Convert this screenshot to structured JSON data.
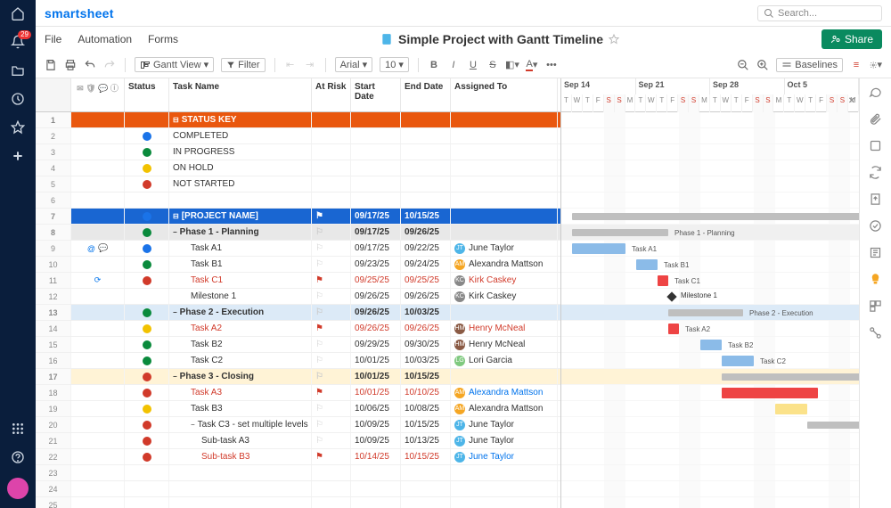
{
  "brand": "smartsheet",
  "search_placeholder": "Search...",
  "notification_count": "29",
  "menus": {
    "file": "File",
    "automation": "Automation",
    "forms": "Forms"
  },
  "title": "Simple Project with Gantt Timeline",
  "share_label": "Share",
  "toolbar": {
    "view": "Gantt View",
    "filter": "Filter",
    "font": "Arial",
    "size": "10",
    "baselines": "Baselines"
  },
  "columns": {
    "status": "Status",
    "task": "Task Name",
    "risk": "At Risk",
    "start": "Start Date",
    "end": "End Date",
    "assigned": "Assigned To"
  },
  "timeline": {
    "day_width": 12,
    "start_offset_days": 0,
    "weeks": [
      {
        "label": "Sep 14",
        "days": 7
      },
      {
        "label": "Sep 21",
        "days": 7
      },
      {
        "label": "Sep 28",
        "days": 7
      },
      {
        "label": "Oct 5",
        "days": 7
      }
    ],
    "day_labels": [
      "T",
      "W",
      "T",
      "F",
      "S",
      "S",
      "M",
      "T",
      "W",
      "T",
      "F",
      "S",
      "S",
      "M",
      "T",
      "W",
      "T",
      "F",
      "S",
      "S",
      "M",
      "T",
      "W",
      "T",
      "F",
      "S",
      "S",
      "M"
    ],
    "weekend_idx": [
      4,
      5,
      11,
      12,
      18,
      19,
      25,
      26
    ],
    "weekend_cols": [
      4,
      11,
      18,
      25
    ]
  },
  "status_colors": {
    "completed": "#1a73e8",
    "in_progress": "#0a8a3c",
    "on_hold": "#f2c200",
    "not_started": "#d13a2a"
  },
  "assignee_colors": {
    "JT": "#4db5e8",
    "AM": "#f5a623",
    "KC": "#888888",
    "HM": "#8a5a44",
    "LG": "#7fc97f"
  },
  "rows": [
    {
      "n": 1,
      "type": "header",
      "task": "STATUS KEY",
      "cls": "hdr-row",
      "expand": true
    },
    {
      "n": 2,
      "type": "key",
      "status": "completed",
      "task": "COMPLETED"
    },
    {
      "n": 3,
      "type": "key",
      "status": "in_progress",
      "task": "IN PROGRESS"
    },
    {
      "n": 4,
      "type": "key",
      "status": "on_hold",
      "task": "ON HOLD"
    },
    {
      "n": 5,
      "type": "key",
      "status": "not_started",
      "task": "NOT STARTED"
    },
    {
      "n": 6,
      "type": "blank"
    },
    {
      "n": 7,
      "type": "header",
      "task": "[PROJECT NAME]",
      "cls": "hdr-row2",
      "status": "completed",
      "start": "09/17/25",
      "end": "10/15/25",
      "flag": "white",
      "expand": true,
      "bar": {
        "start": 1,
        "len": 27,
        "style": "summary"
      }
    },
    {
      "n": 8,
      "type": "phase",
      "task": "Phase 1 - Planning",
      "cls": "phase-row",
      "status": "in_progress",
      "start": "09/17/25",
      "end": "09/26/25",
      "bar": {
        "start": 1,
        "len": 9,
        "style": "summary",
        "label": "Phase 1 - Planning"
      }
    },
    {
      "n": 9,
      "type": "task",
      "task": "Task A1",
      "status": "completed",
      "start": "09/17/25",
      "end": "09/22/25",
      "assignee": "June Taylor",
      "av": "JT",
      "icons": "@c",
      "bar": {
        "start": 1,
        "len": 5,
        "style": "blue",
        "label": "Task A1"
      }
    },
    {
      "n": 10,
      "type": "task",
      "task": "Task B1",
      "status": "in_progress",
      "start": "09/23/25",
      "end": "09/24/25",
      "assignee": "Alexandra Mattson",
      "av": "AM",
      "bar": {
        "start": 7,
        "len": 2,
        "style": "blue",
        "label": "Task B1"
      }
    },
    {
      "n": 11,
      "type": "task",
      "task": "Task C1",
      "status": "not_started",
      "red": true,
      "flag": true,
      "start": "09/25/25",
      "end": "09/25/25",
      "assignee": "Kirk Caskey",
      "av": "KC",
      "icons": "r",
      "bar": {
        "start": 9,
        "len": 1,
        "style": "red",
        "label": "Task C1"
      }
    },
    {
      "n": 12,
      "type": "task",
      "task": "Milestone 1",
      "start": "09/26/25",
      "end": "09/26/25",
      "assignee": "Kirk Caskey",
      "av": "KC",
      "milestone": 10,
      "bar_label": "Milestone 1"
    },
    {
      "n": 13,
      "type": "phase",
      "task": "Phase 2 - Execution",
      "cls": "phase-row2",
      "status": "in_progress",
      "start": "09/26/25",
      "end": "10/03/25",
      "bar": {
        "start": 10,
        "len": 7,
        "style": "summary",
        "label": "Phase 2 - Execution"
      }
    },
    {
      "n": 14,
      "type": "task",
      "task": "Task A2",
      "status": "on_hold",
      "red": true,
      "flag": true,
      "start": "09/26/25",
      "end": "09/26/25",
      "assignee": "Henry McNeal",
      "av": "HM",
      "bar": {
        "start": 10,
        "len": 1,
        "style": "red",
        "label": "Task A2"
      }
    },
    {
      "n": 15,
      "type": "task",
      "task": "Task B2",
      "status": "in_progress",
      "start": "09/29/25",
      "end": "09/30/25",
      "assignee": "Henry McNeal",
      "av": "HM",
      "bar": {
        "start": 13,
        "len": 2,
        "style": "blue",
        "label": "Task B2"
      }
    },
    {
      "n": 16,
      "type": "task",
      "task": "Task C2",
      "status": "in_progress",
      "start": "10/01/25",
      "end": "10/03/25",
      "assignee": "Lori Garcia",
      "av": "LG",
      "bar": {
        "start": 15,
        "len": 3,
        "style": "blue",
        "label": "Task C2"
      }
    },
    {
      "n": 17,
      "type": "phase",
      "task": "Phase 3 - Closing",
      "cls": "phase-row3",
      "status": "not_started",
      "start": "10/01/25",
      "end": "10/15/25",
      "bar": {
        "start": 15,
        "len": 13,
        "style": "summary"
      }
    },
    {
      "n": 18,
      "type": "task",
      "task": "Task A3",
      "status": "not_started",
      "red": true,
      "flag": true,
      "start": "10/01/25",
      "end": "10/10/25",
      "assignee": "Alexandra Mattson",
      "av": "AM",
      "alink": true,
      "bar": {
        "start": 15,
        "len": 9,
        "style": "red"
      }
    },
    {
      "n": 19,
      "type": "task",
      "task": "Task B3",
      "status": "on_hold",
      "start": "10/06/25",
      "end": "10/08/25",
      "assignee": "Alexandra Mattson",
      "av": "AM",
      "bar": {
        "start": 20,
        "len": 3,
        "style": "yellow"
      }
    },
    {
      "n": 20,
      "type": "task",
      "task": "Task C3 - set multiple levels",
      "status": "not_started",
      "start": "10/09/25",
      "end": "10/15/25",
      "assignee": "June Taylor",
      "av": "JT",
      "expand": true,
      "bar": {
        "start": 23,
        "len": 6,
        "style": "summary"
      }
    },
    {
      "n": 21,
      "type": "sub",
      "task": "Sub-task A3",
      "status": "not_started",
      "start": "10/09/25",
      "end": "10/13/25",
      "assignee": "June Taylor",
      "av": "JT"
    },
    {
      "n": 22,
      "type": "sub",
      "task": "Sub-task B3",
      "status": "not_started",
      "red": true,
      "flag": true,
      "start": "10/14/25",
      "end": "10/15/25",
      "assignee": "June Taylor",
      "av": "JT",
      "alink": true
    },
    {
      "n": 23,
      "type": "blank"
    },
    {
      "n": 24,
      "type": "blank"
    },
    {
      "n": 25,
      "type": "blank"
    }
  ]
}
